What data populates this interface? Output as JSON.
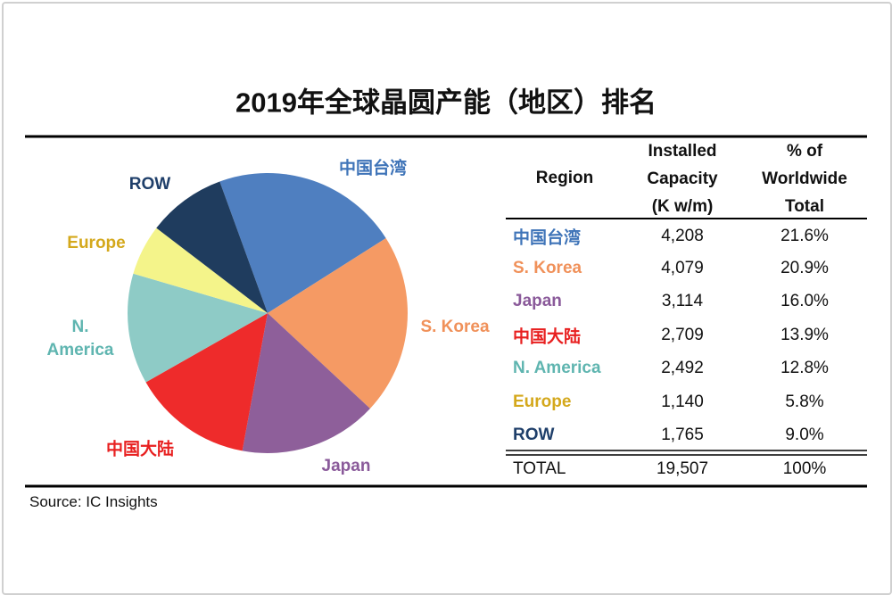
{
  "title": "2019年全球晶圆产能（地区）排名",
  "chart_data": {
    "type": "pie",
    "categories": [
      "中国台湾",
      "S. Korea",
      "Japan",
      "中国大陆",
      "N. America",
      "Europe",
      "ROW"
    ],
    "values": [
      4208,
      4079,
      3114,
      2709,
      2492,
      1140,
      1765
    ],
    "colors": [
      "#4f7fc0",
      "#f59a64",
      "#8e5f9a",
      "#ee2b2b",
      "#8ecbc6",
      "#f4f48a",
      "#1f3c5e"
    ],
    "label_colors": [
      "#3f74b8",
      "#f0915a",
      "#8a5a9a",
      "#e82020",
      "#5fb5b0",
      "#d4a81c",
      "#1f3f6a"
    ]
  },
  "table": {
    "headers": [
      [
        "Region"
      ],
      [
        "Installed",
        "Capacity",
        "(K w/m)"
      ],
      [
        "% of",
        "Worldwide",
        "Total"
      ]
    ],
    "rows": [
      [
        "中国台湾",
        "4,208",
        "21.6%"
      ],
      [
        "S. Korea",
        "4,079",
        "20.9%"
      ],
      [
        "Japan",
        "3,114",
        "16.0%"
      ],
      [
        "中国大陆",
        "2,709",
        "13.9%"
      ],
      [
        "N. America",
        "2,492",
        "12.8%"
      ],
      [
        "Europe",
        "1,140",
        "5.8%"
      ],
      [
        "ROW",
        "1,765",
        "9.0%"
      ]
    ],
    "total": [
      "TOTAL",
      "19,507",
      "100%"
    ]
  },
  "source": "Source:  IC Insights"
}
